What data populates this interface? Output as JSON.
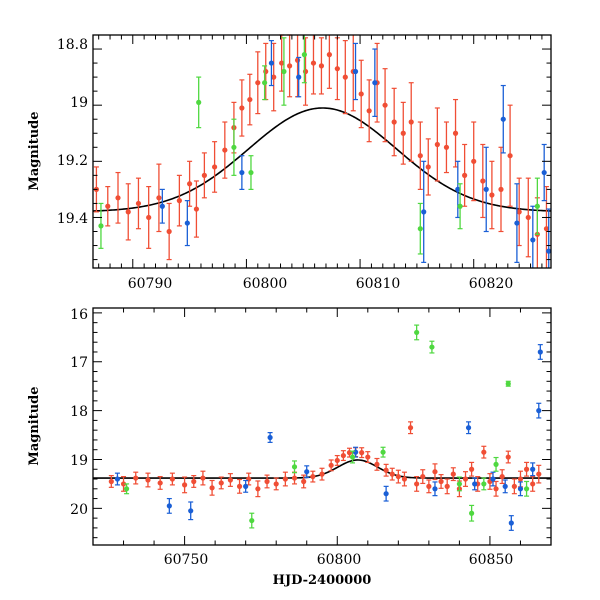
{
  "chart_data": [
    {
      "type": "scatter",
      "panel": "top",
      "xlim": [
        60786.5,
        60826.8
      ],
      "ylim": [
        18.75,
        19.58
      ],
      "y_inverted": true,
      "ylabel": "Magnitude",
      "xlabel": "",
      "x_ticks": [
        60790,
        60800,
        60810,
        60820
      ],
      "x_tick_labels": [
        "60790",
        "60800",
        "60810",
        "60820"
      ],
      "y_ticks": [
        18.8,
        19.0,
        19.2,
        19.4
      ],
      "y_tick_labels": [
        "18.8",
        "19",
        "19.2",
        "19.4"
      ],
      "colors": {
        "red": "#f04e35",
        "blue": "#1a5fd6",
        "green": "#4fd840",
        "model": "#000000"
      },
      "model": {
        "base": 19.38,
        "amp": 0.37,
        "t0": 60806.7,
        "width": 6.5
      },
      "series": [
        {
          "color": "red",
          "points": [
            [
              60786.8,
              19.3,
              0.08
            ],
            [
              60787.8,
              19.36,
              0.07
            ],
            [
              60788.7,
              19.33,
              0.09
            ],
            [
              60789.6,
              19.38,
              0.1
            ],
            [
              60790.5,
              19.35,
              0.09
            ],
            [
              60791.4,
              19.4,
              0.11
            ],
            [
              60792.3,
              19.33,
              0.12
            ],
            [
              60793.2,
              19.45,
              0.1
            ],
            [
              60794.1,
              19.34,
              0.09
            ],
            [
              60795.0,
              19.28,
              0.08
            ],
            [
              60795.6,
              19.37,
              0.1
            ],
            [
              60796.3,
              19.25,
              0.08
            ],
            [
              60797.2,
              19.22,
              0.09
            ],
            [
              60798.1,
              19.16,
              0.1
            ],
            [
              60798.9,
              19.08,
              0.09
            ],
            [
              60799.6,
              19.01,
              0.1
            ],
            [
              60800.3,
              18.98,
              0.09
            ],
            [
              60801.0,
              18.92,
              0.11
            ],
            [
              60801.7,
              18.88,
              0.1
            ],
            [
              60802.4,
              18.9,
              0.12
            ],
            [
              60803.1,
              18.85,
              0.1
            ],
            [
              60803.8,
              18.86,
              0.11
            ],
            [
              60804.5,
              18.84,
              0.13
            ],
            [
              60805.2,
              18.88,
              0.12
            ],
            [
              60805.9,
              18.85,
              0.11
            ],
            [
              60806.6,
              18.86,
              0.1
            ],
            [
              60807.3,
              18.82,
              0.12
            ],
            [
              60808.0,
              18.87,
              0.11
            ],
            [
              60808.7,
              18.9,
              0.13
            ],
            [
              60809.4,
              18.88,
              0.14
            ],
            [
              60810.1,
              18.96,
              0.12
            ],
            [
              60810.8,
              19.02,
              0.11
            ],
            [
              60811.5,
              18.92,
              0.14
            ],
            [
              60812.2,
              19.0,
              0.13
            ],
            [
              60813.0,
              19.06,
              0.12
            ],
            [
              60813.8,
              19.1,
              0.11
            ],
            [
              60814.5,
              19.06,
              0.14
            ],
            [
              60815.3,
              19.18,
              0.12
            ],
            [
              60816.0,
              19.22,
              0.1
            ],
            [
              60816.8,
              19.14,
              0.13
            ],
            [
              60817.6,
              19.15,
              0.09
            ],
            [
              60818.4,
              19.1,
              0.12
            ],
            [
              60819.2,
              19.25,
              0.11
            ],
            [
              60820.0,
              19.2,
              0.14
            ],
            [
              60820.8,
              19.27,
              0.13
            ],
            [
              60821.6,
              19.32,
              0.12
            ],
            [
              60822.4,
              19.3,
              0.15
            ],
            [
              60823.2,
              19.18,
              0.18
            ],
            [
              60824.0,
              19.38,
              0.12
            ],
            [
              60824.8,
              19.4,
              0.14
            ],
            [
              60825.6,
              19.46,
              0.13
            ],
            [
              60826.4,
              19.44,
              0.15
            ]
          ]
        },
        {
          "color": "blue",
          "points": [
            [
              60792.6,
              19.36,
              0.06
            ],
            [
              60794.8,
              19.42,
              0.08
            ],
            [
              60799.6,
              19.24,
              0.06
            ],
            [
              60802.2,
              18.85,
              0.08
            ],
            [
              60804.6,
              18.9,
              0.07
            ],
            [
              60809.6,
              18.88,
              0.1
            ],
            [
              60811.3,
              18.92,
              0.12
            ],
            [
              60815.6,
              19.38,
              0.18
            ],
            [
              60818.6,
              19.3,
              0.1
            ],
            [
              60821.1,
              19.3,
              0.15
            ],
            [
              60822.6,
              19.05,
              0.12
            ],
            [
              60823.8,
              19.42,
              0.14
            ],
            [
              60825.2,
              19.48,
              0.12
            ],
            [
              60826.2,
              19.24,
              0.1
            ],
            [
              60826.6,
              19.52,
              0.15
            ]
          ]
        },
        {
          "color": "green",
          "points": [
            [
              60787.2,
              19.43,
              0.08
            ],
            [
              60795.8,
              18.99,
              0.09
            ],
            [
              60798.9,
              19.15,
              0.1
            ],
            [
              60800.4,
              19.24,
              0.06
            ],
            [
              60801.6,
              18.92,
              0.06
            ],
            [
              60803.3,
              18.88,
              0.12
            ],
            [
              60805.1,
              18.82,
              0.1
            ],
            [
              60815.3,
              19.44,
              0.09
            ],
            [
              60818.8,
              19.36,
              0.08
            ],
            [
              60825.6,
              19.36,
              0.1
            ]
          ]
        }
      ]
    },
    {
      "type": "scatter",
      "panel": "bottom",
      "xlim": [
        60720,
        60870
      ],
      "ylim": [
        15.9,
        20.75
      ],
      "y_inverted": true,
      "ylabel": "Magnitude",
      "xlabel": "HJD-2400000",
      "x_ticks": [
        60750,
        60800,
        60850
      ],
      "x_tick_labels": [
        "60750",
        "60800",
        "60850"
      ],
      "y_ticks": [
        16,
        17,
        18,
        19,
        20
      ],
      "y_tick_labels": [
        "16",
        "17",
        "18",
        "19",
        "20"
      ],
      "colors": {
        "red": "#f04e35",
        "blue": "#1a5fd6",
        "green": "#4fd840",
        "model": "#000000"
      },
      "model": {
        "base": 19.38,
        "amp": 0.37,
        "t0": 60806.7,
        "width": 6.5
      },
      "series": [
        {
          "color": "red",
          "points": [
            [
              60726,
              19.45,
              0.12
            ],
            [
              60730,
              19.5,
              0.15
            ],
            [
              60734,
              19.38,
              0.12
            ],
            [
              60738,
              19.42,
              0.14
            ],
            [
              60742,
              19.48,
              0.13
            ],
            [
              60746,
              19.4,
              0.12
            ],
            [
              60750,
              19.52,
              0.16
            ],
            [
              60753,
              19.45,
              0.12
            ],
            [
              60756,
              19.38,
              0.14
            ],
            [
              60759,
              19.58,
              0.15
            ],
            [
              60762,
              19.48,
              0.12
            ],
            [
              60765,
              19.42,
              0.13
            ],
            [
              60768,
              19.55,
              0.14
            ],
            [
              60771,
              19.4,
              0.12
            ],
            [
              60774,
              19.6,
              0.16
            ],
            [
              60777,
              19.45,
              0.13
            ],
            [
              60780,
              19.5,
              0.12
            ],
            [
              60783,
              19.4,
              0.14
            ],
            [
              60786,
              19.38,
              0.12
            ],
            [
              60789,
              19.45,
              0.13
            ],
            [
              60792,
              19.35,
              0.11
            ],
            [
              60795,
              19.3,
              0.12
            ],
            [
              60798,
              19.12,
              0.11
            ],
            [
              60800,
              19.02,
              0.1
            ],
            [
              60802,
              18.92,
              0.1
            ],
            [
              60804,
              18.86,
              0.09
            ],
            [
              60806,
              18.85,
              0.09
            ],
            [
              60808,
              18.86,
              0.1
            ],
            [
              60810,
              18.95,
              0.11
            ],
            [
              60813,
              19.1,
              0.12
            ],
            [
              60816,
              19.22,
              0.12
            ],
            [
              60818,
              19.3,
              0.12
            ],
            [
              60820,
              19.35,
              0.13
            ],
            [
              60822,
              19.4,
              0.14
            ],
            [
              60824,
              18.35,
              0.12
            ],
            [
              60826,
              19.5,
              0.15
            ],
            [
              60828,
              19.35,
              0.14
            ],
            [
              60830,
              19.55,
              0.13
            ],
            [
              60832,
              19.25,
              0.16
            ],
            [
              60834,
              19.45,
              0.14
            ],
            [
              60836,
              19.55,
              0.15
            ],
            [
              60838,
              19.3,
              0.13
            ],
            [
              60840,
              19.6,
              0.16
            ],
            [
              60842,
              19.4,
              0.15
            ],
            [
              60844,
              19.2,
              0.14
            ],
            [
              60846,
              19.5,
              0.15
            ],
            [
              60848,
              18.85,
              0.12
            ],
            [
              60850,
              19.45,
              0.16
            ],
            [
              60852,
              19.6,
              0.15
            ],
            [
              60854,
              19.35,
              0.14
            ],
            [
              60856,
              18.95,
              0.12
            ],
            [
              60858,
              19.55,
              0.15
            ],
            [
              60860,
              19.4,
              0.16
            ],
            [
              60862,
              19.2,
              0.14
            ],
            [
              60864,
              19.5,
              0.15
            ],
            [
              60866,
              19.3,
              0.18
            ]
          ]
        },
        {
          "color": "blue",
          "points": [
            [
              60728,
              19.4,
              0.12
            ],
            [
              60745,
              19.95,
              0.15
            ],
            [
              60752,
              20.05,
              0.18
            ],
            [
              60770,
              19.55,
              0.12
            ],
            [
              60778,
              18.55,
              0.1
            ],
            [
              60790,
              19.25,
              0.12
            ],
            [
              60806,
              18.85,
              0.1
            ],
            [
              60816,
              19.7,
              0.15
            ],
            [
              60832,
              19.6,
              0.14
            ],
            [
              60843,
              18.35,
              0.12
            ],
            [
              60845,
              19.5,
              0.12
            ],
            [
              60851,
              19.4,
              0.14
            ],
            [
              60855,
              19.55,
              0.13
            ],
            [
              60857,
              20.3,
              0.15
            ],
            [
              60860,
              19.6,
              0.14
            ],
            [
              60864,
              19.2,
              0.13
            ],
            [
              60866,
              18.0,
              0.15
            ],
            [
              60866.5,
              16.8,
              0.15
            ]
          ]
        },
        {
          "color": "green",
          "points": [
            [
              60731,
              19.6,
              0.1
            ],
            [
              60772,
              20.25,
              0.15
            ],
            [
              60786,
              19.15,
              0.12
            ],
            [
              60805,
              18.95,
              0.12
            ],
            [
              60815,
              18.85,
              0.1
            ],
            [
              60826,
              16.4,
              0.15
            ],
            [
              60831,
              16.7,
              0.12
            ],
            [
              60840,
              19.5,
              0.14
            ],
            [
              60844,
              20.1,
              0.16
            ],
            [
              60848,
              19.5,
              0.12
            ],
            [
              60852,
              19.1,
              0.14
            ],
            [
              60856,
              17.45,
              0.05
            ],
            [
              60862,
              19.6,
              0.15
            ]
          ]
        }
      ]
    }
  ]
}
